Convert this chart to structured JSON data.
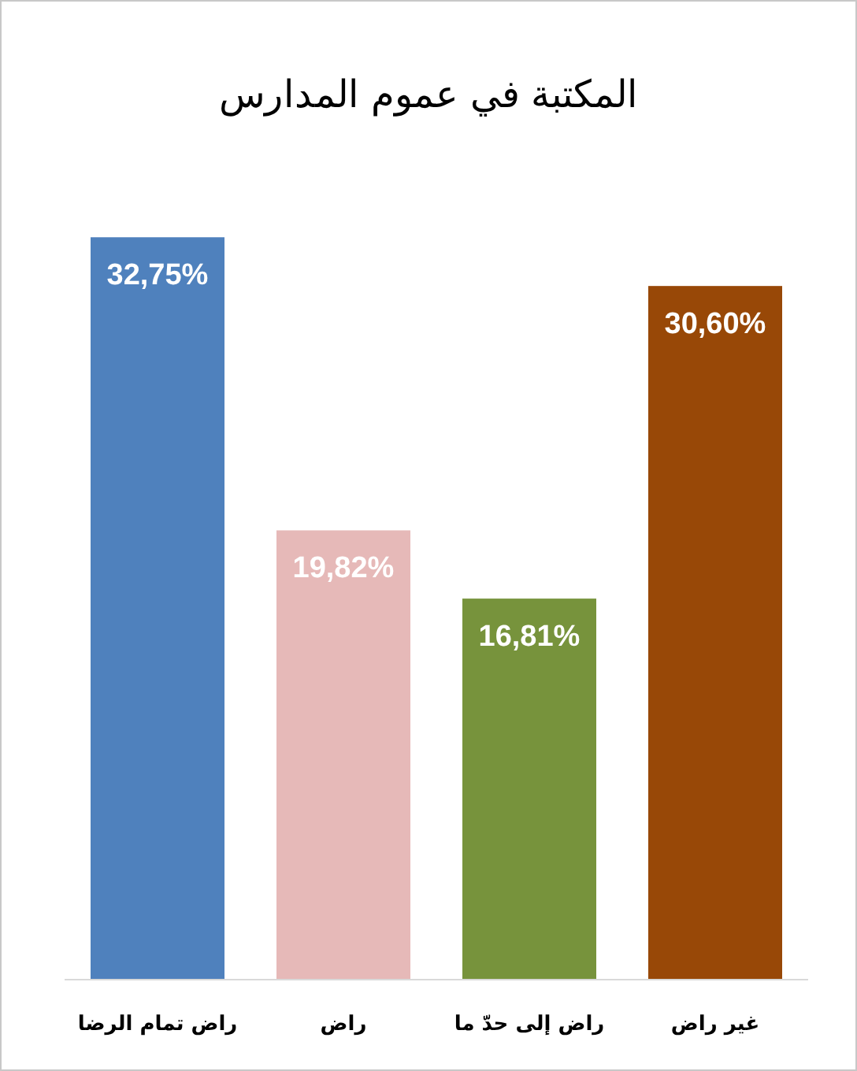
{
  "chart_data": {
    "type": "bar",
    "title": "المكتبة في عموم المدارس",
    "categories": [
      "راض تمام الرضا",
      "راض",
      "راض إلى حدّ ما",
      "غير راض"
    ],
    "values": [
      32.75,
      19.82,
      16.81,
      30.6
    ],
    "colors": [
      "#4f81bd",
      "#e6b9b8",
      "#77933c",
      "#984807"
    ],
    "value_labels": [
      "32,75%",
      "19,82%",
      "16,81%",
      "30,60%"
    ]
  }
}
